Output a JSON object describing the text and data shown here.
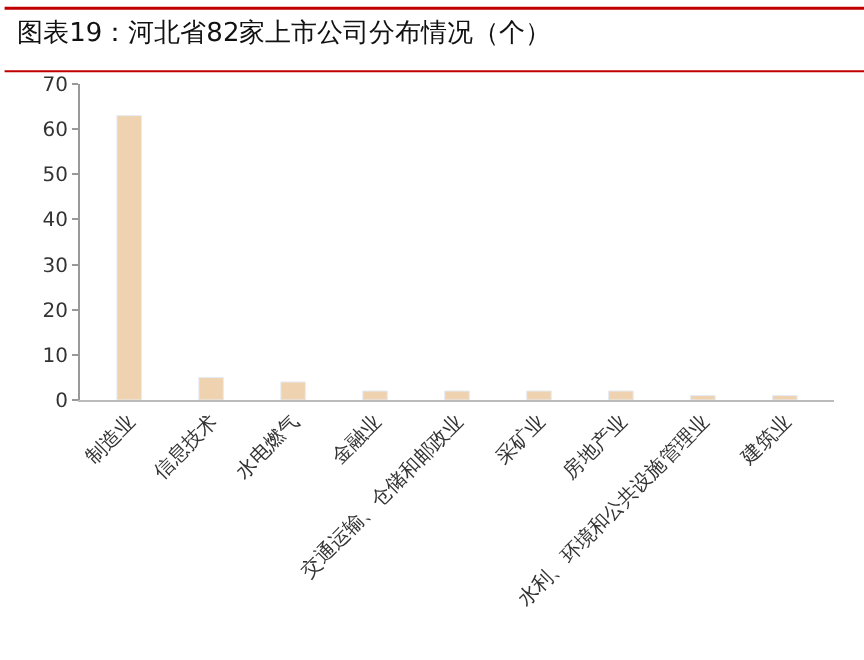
{
  "chart_data": {
    "type": "bar",
    "title": "图表19：河北省82家上市公司分布情况（个）",
    "categories": [
      "制造业",
      "信息技术",
      "水电燃气",
      "金融业",
      "交通运输、仓储和邮政业",
      "采矿业",
      "房地产业",
      "水利、环境和公共设施管理业",
      "建筑业"
    ],
    "values": [
      63,
      5,
      4,
      2,
      2,
      2,
      2,
      1,
      1
    ],
    "color": "#efd3b0",
    "ylim": [
      0,
      70
    ],
    "yticks": [
      0,
      10,
      20,
      30,
      40,
      50,
      60,
      70
    ]
  }
}
